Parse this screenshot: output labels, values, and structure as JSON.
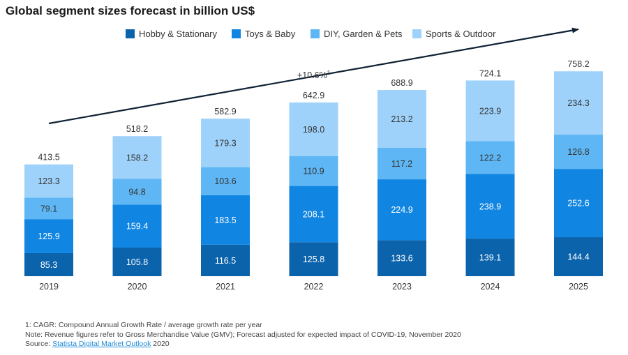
{
  "colors": {
    "Hobby & Stationary": "#0b63ab",
    "Toys & Baby": "#1085e2",
    "DIY, Garden & Pets": "#5eb7f4",
    "Sports & Outdoor": "#9fd2fa",
    "trend_arrow": "#0f2134"
  },
  "chart_data": {
    "type": "bar",
    "stacked": true,
    "title": "Global segment sizes forecast in billion US$",
    "categories": [
      "2019",
      "2020",
      "2021",
      "2022",
      "2023",
      "2024",
      "2025"
    ],
    "series": [
      {
        "name": "Hobby & Stationary",
        "values": [
          85.3,
          105.8,
          116.5,
          125.8,
          133.6,
          139.1,
          144.4
        ]
      },
      {
        "name": "Toys & Baby",
        "values": [
          125.9,
          159.4,
          183.5,
          208.1,
          224.9,
          238.9,
          252.6
        ]
      },
      {
        "name": "DIY, Garden & Pets",
        "values": [
          79.1,
          94.8,
          103.6,
          110.9,
          117.2,
          122.2,
          126.8
        ]
      },
      {
        "name": "Sports & Outdoor",
        "values": [
          123.3,
          158.2,
          179.3,
          198.0,
          213.2,
          223.9,
          234.3
        ]
      }
    ],
    "totals": [
      "413.5",
      "518.2",
      "582.9",
      "642.9",
      "688.9",
      "724.1",
      "758.2"
    ],
    "annotation": {
      "text": "+10.6%",
      "superscript": "1"
    },
    "legend_position": "top",
    "grid": false,
    "ylim": [
      0,
      780
    ]
  },
  "footnotes": {
    "line1": "1: CAGR: Compound Annual Growth Rate / average growth rate per year",
    "line2": "Note: Revenue figures refer to Gross Merchandise Value (GMV); Forecast adjusted for expected impact of COVID-19, November 2020",
    "source_prefix": "Source: ",
    "source_link": "Statista Digital Market Outlook",
    "source_suffix": " 2020"
  }
}
